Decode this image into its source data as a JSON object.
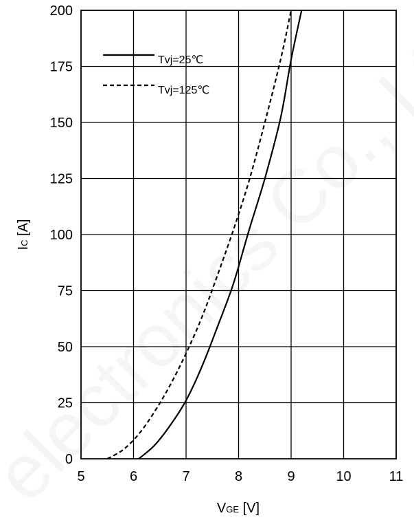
{
  "chart_data": {
    "type": "line",
    "title": "",
    "xlabel": {
      "main": "V",
      "sub": "GE",
      "unit": " [V]"
    },
    "ylabel": {
      "main": "I",
      "sub": "C",
      "unit": " [A]"
    },
    "xlim": [
      5,
      11
    ],
    "ylim": [
      0,
      200
    ],
    "xticks": [
      5,
      6,
      7,
      8,
      9,
      10,
      11
    ],
    "yticks": [
      0,
      25,
      50,
      75,
      100,
      125,
      150,
      175,
      200
    ],
    "grid": true,
    "legend_position": "top-left",
    "series": [
      {
        "name": "Tvj=25℃",
        "style": "solid",
        "color": "#000000",
        "x": [
          6.1,
          6.4,
          6.7,
          7.0,
          7.3,
          7.6,
          7.9,
          8.2,
          8.5,
          8.8,
          9.0,
          9.2
        ],
        "y": [
          0,
          6,
          15,
          26,
          41,
          59,
          78,
          102,
          125,
          152,
          178,
          200
        ]
      },
      {
        "name": "Tvj=125℃",
        "style": "dashed",
        "color": "#000000",
        "x": [
          5.5,
          5.8,
          6.1,
          6.4,
          6.7,
          7.0,
          7.3,
          7.6,
          7.9,
          8.2,
          8.5,
          8.8,
          9.0
        ],
        "y": [
          0,
          4,
          11,
          21,
          33,
          47,
          63,
          82,
          102,
          124,
          150,
          178,
          200
        ]
      }
    ],
    "watermark": "electronics Co., Lt"
  }
}
